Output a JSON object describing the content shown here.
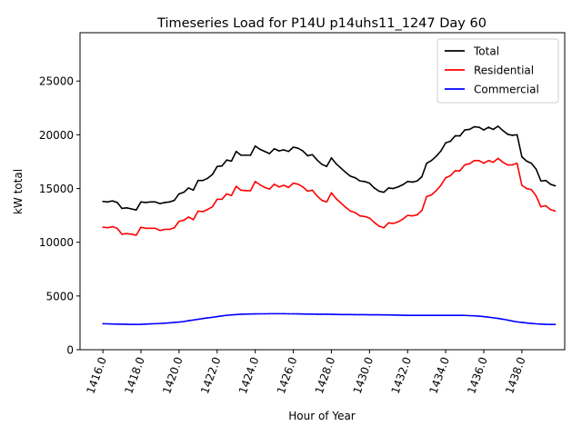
{
  "chart_data": {
    "type": "line",
    "title": "Timeseries Load for P14U p14uhs11_1247  Day 60",
    "xlabel": "Hour of Year",
    "ylabel": "kW total",
    "xlim": [
      1414.8,
      1440.25
    ],
    "ylim": [
      0,
      29500
    ],
    "x_start": 1416.0,
    "x_step": 0.25,
    "x_ticks": [
      1416,
      1418,
      1420,
      1422,
      1424,
      1426,
      1428,
      1430,
      1432,
      1434,
      1436,
      1438
    ],
    "x_tick_labels": [
      "1416.0",
      "1418.0",
      "1420.0",
      "1422.0",
      "1424.0",
      "1426.0",
      "1428.0",
      "1430.0",
      "1432.0",
      "1434.0",
      "1436.0",
      "1438.0"
    ],
    "y_ticks": [
      0,
      5000,
      10000,
      15000,
      20000,
      25000
    ],
    "y_tick_labels": [
      "0",
      "5000",
      "10000",
      "15000",
      "20000",
      "25000"
    ],
    "legend_position": "top-right",
    "series": [
      {
        "name": "Total",
        "color": "#000000",
        "values": [
          13800,
          13750,
          13850,
          13700,
          13150,
          13200,
          13100,
          13000,
          13750,
          13700,
          13750,
          13750,
          13600,
          13700,
          13750,
          13900,
          14500,
          14650,
          15050,
          14850,
          15750,
          15750,
          15950,
          16300,
          17050,
          17100,
          17650,
          17550,
          18450,
          18100,
          18100,
          18100,
          18950,
          18650,
          18450,
          18250,
          18700,
          18500,
          18600,
          18450,
          18850,
          18750,
          18500,
          18050,
          18150,
          17650,
          17250,
          17050,
          17850,
          17300,
          16900,
          16500,
          16150,
          16000,
          15700,
          15650,
          15500,
          15050,
          14750,
          14650,
          15050,
          15000,
          15150,
          15350,
          15650,
          15600,
          15700,
          16100,
          17350,
          17600,
          18000,
          18500,
          19250,
          19400,
          19900,
          19900,
          20450,
          20500,
          20750,
          20700,
          20450,
          20700,
          20500,
          20800,
          20400,
          20050,
          19950,
          20000,
          17950,
          17550,
          17350,
          16800,
          15700,
          15750,
          15400,
          15250
        ]
      },
      {
        "name": "Residential",
        "color": "#ff0000",
        "values": [
          11400,
          11350,
          11450,
          11300,
          10750,
          10800,
          10750,
          10650,
          11400,
          11300,
          11300,
          11300,
          11100,
          11200,
          11200,
          11350,
          11950,
          12050,
          12350,
          12100,
          12900,
          12850,
          13050,
          13300,
          14000,
          14000,
          14500,
          14350,
          15200,
          14850,
          14800,
          14800,
          15650,
          15350,
          15100,
          14950,
          15400,
          15150,
          15300,
          15100,
          15500,
          15400,
          15150,
          14750,
          14850,
          14300,
          13900,
          13750,
          14600,
          14050,
          13650,
          13250,
          12900,
          12750,
          12450,
          12400,
          12250,
          11850,
          11500,
          11350,
          11800,
          11750,
          11900,
          12150,
          12500,
          12450,
          12550,
          12950,
          14250,
          14400,
          14800,
          15300,
          16000,
          16200,
          16650,
          16650,
          17200,
          17300,
          17600,
          17600,
          17350,
          17600,
          17450,
          17800,
          17450,
          17200,
          17200,
          17350,
          15300,
          15000,
          14900,
          14300,
          13300,
          13400,
          13050,
          12900
        ]
      },
      {
        "name": "Commercial",
        "color": "#0000ff",
        "values": [
          2420,
          2410,
          2390,
          2380,
          2370,
          2360,
          2355,
          2350,
          2360,
          2380,
          2400,
          2420,
          2440,
          2470,
          2500,
          2540,
          2570,
          2620,
          2700,
          2760,
          2830,
          2900,
          2960,
          3010,
          3080,
          3140,
          3200,
          3240,
          3270,
          3300,
          3310,
          3320,
          3330,
          3340,
          3340,
          3350,
          3350,
          3350,
          3350,
          3340,
          3340,
          3330,
          3320,
          3310,
          3310,
          3300,
          3300,
          3300,
          3290,
          3280,
          3270,
          3270,
          3270,
          3260,
          3260,
          3260,
          3250,
          3250,
          3250,
          3240,
          3240,
          3230,
          3220,
          3210,
          3200,
          3200,
          3200,
          3200,
          3200,
          3200,
          3200,
          3200,
          3200,
          3200,
          3200,
          3200,
          3190,
          3170,
          3150,
          3120,
          3080,
          3030,
          2970,
          2910,
          2840,
          2760,
          2670,
          2590,
          2540,
          2490,
          2450,
          2410,
          2380,
          2360,
          2350,
          2350
        ]
      }
    ]
  }
}
